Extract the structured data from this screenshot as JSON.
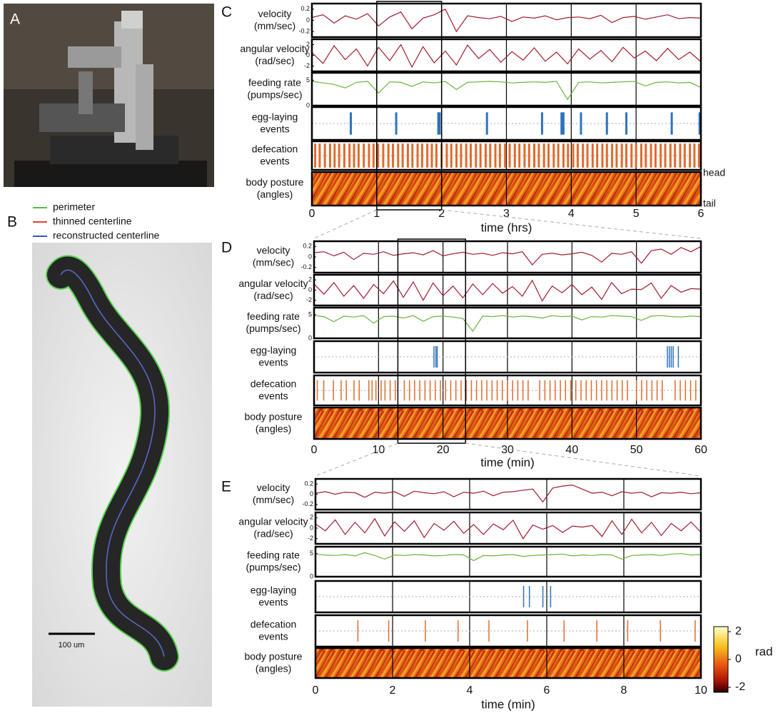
{
  "panels": {
    "A": {
      "label": "A"
    },
    "B": {
      "label": "B",
      "legend": [
        {
          "name": "perimeter",
          "color": "#58b848"
        },
        {
          "name": "thinned centerline",
          "color": "#e8402c"
        },
        {
          "name": "reconstructed centerline",
          "color": "#3a55b8"
        }
      ],
      "scale_bar": "100 um"
    },
    "C": {
      "label": "C",
      "xlabel": "time (hrs)",
      "xlim": [
        0,
        6
      ],
      "xticks": [
        0,
        1,
        2,
        3,
        4,
        5,
        6
      ],
      "zoom": [
        1,
        2
      ],
      "head": "head",
      "tail": "tail",
      "rows": [
        {
          "kind": "line",
          "label": [
            "velocity",
            "(mm/sec)"
          ],
          "color": "#a31b2c",
          "ylim": [
            -0.3,
            0.3
          ],
          "yticks": [
            0.2,
            0,
            -0.2
          ],
          "values": [
            0.05,
            0.1,
            -0.05,
            0.08,
            0.02,
            0.12,
            -0.1,
            0.06,
            0.15,
            -0.15,
            0.04,
            0.1,
            0.2,
            -0.2,
            0.08,
            0.05,
            0.03,
            0.07,
            -0.02,
            0.06,
            0.04,
            0.08,
            0.01,
            0.05,
            0.06,
            0.03,
            0.09,
            -0.04,
            0.05,
            0.07,
            0.02,
            0.06,
            0.1,
            0.03,
            0.05,
            0.04
          ]
        },
        {
          "kind": "line",
          "label": [
            "angular velocity",
            "(rad/sec)"
          ],
          "color": "#a31b2c",
          "ylim": [
            -3,
            3
          ],
          "yticks": [
            2,
            0,
            -2
          ],
          "values": [
            0.5,
            -1.5,
            1.8,
            -0.8,
            1.2,
            -2,
            1.5,
            -1,
            2,
            -2.2,
            1.6,
            -1.4,
            0.8,
            -1.8,
            1.9,
            -0.6,
            1.1,
            -1.3,
            0.7,
            -0.9,
            1.4,
            -1.1,
            0.6,
            -1.6,
            1.2,
            -0.7,
            0.9,
            -1.2,
            1.5,
            -0.5,
            0.8,
            -1,
            1.3,
            -0.8,
            0.6,
            -1.2
          ]
        },
        {
          "kind": "line",
          "label": [
            "feeding rate",
            "(pumps/sec)"
          ],
          "color": "#6ab43c",
          "ylim": [
            0,
            6.5
          ],
          "yticks": [
            5,
            0
          ],
          "values": [
            4.8,
            4.5,
            4.2,
            3.5,
            4.6,
            4.8,
            2.5,
            4.7,
            4.6,
            3.8,
            4.7,
            4.5,
            4.8,
            3.2,
            4.6,
            4.7,
            4.8,
            4.7,
            4.5,
            4.6,
            4.7,
            4.6,
            4.8,
            1.2,
            4.6,
            4.7,
            4.5,
            4.6,
            4.7,
            4.8,
            3.9,
            4.6,
            4.7,
            4.5,
            4.6,
            3.6
          ]
        },
        {
          "kind": "events",
          "label": [
            "egg-laying",
            "events"
          ],
          "color": "#2f72c0",
          "events": [
            0.6,
            1.3,
            1.95,
            1.97,
            2.7,
            3.55,
            3.85,
            3.88,
            4.15,
            4.55,
            4.85,
            5.55,
            5.98
          ]
        },
        {
          "kind": "events",
          "label": [
            "defecation",
            "events"
          ],
          "color": "#e06a2c",
          "events": [
            0.05,
            0.12,
            0.2,
            0.28,
            0.35,
            0.42,
            0.5,
            0.58,
            0.65,
            0.72,
            0.8,
            0.88,
            0.95,
            1.02,
            1.1,
            1.18,
            1.25,
            1.33,
            1.4,
            1.48,
            1.55,
            1.63,
            1.7,
            1.78,
            1.85,
            1.92,
            2.0,
            2.08,
            2.15,
            2.23,
            2.3,
            2.38,
            2.45,
            2.53,
            2.6,
            2.68,
            2.75,
            2.83,
            2.9,
            2.98,
            3.05,
            3.13,
            3.2,
            3.28,
            3.35,
            3.43,
            3.5,
            3.58,
            3.65,
            3.73,
            3.8,
            3.88,
            3.95,
            4.03,
            4.1,
            4.18,
            4.25,
            4.33,
            4.4,
            4.48,
            4.55,
            4.63,
            4.7,
            4.78,
            4.85,
            4.93,
            5.0,
            5.08,
            5.15,
            5.23,
            5.3,
            5.38,
            5.45,
            5.53,
            5.6,
            5.68,
            5.75,
            5.83,
            5.9,
            5.97
          ]
        },
        {
          "kind": "heatmap",
          "label": [
            "body posture",
            "(angles)"
          ]
        }
      ]
    },
    "D": {
      "label": "D",
      "xlabel": "time (min)",
      "xlim": [
        0,
        60
      ],
      "xticks": [
        0,
        10,
        20,
        30,
        40,
        50,
        60
      ],
      "zoom": [
        13,
        23.5
      ],
      "rows": [
        {
          "kind": "line",
          "label": [
            "velocity",
            "(mm/sec)"
          ],
          "color": "#a31b2c",
          "ylim": [
            -0.3,
            0.3
          ],
          "yticks": [
            0.2,
            0,
            -0.2
          ],
          "values": [
            0.08,
            0.1,
            0.02,
            0.09,
            -0.05,
            0.07,
            0.05,
            0.1,
            0.03,
            0.06,
            0.08,
            0.04,
            0.12,
            0.02,
            0.06,
            0.09,
            0.05,
            0.07,
            0.03,
            0.08,
            0.06,
            0.1,
            -0.15,
            0.05,
            0.07,
            0.04,
            0.06,
            0.09,
            0.03,
            -0.1,
            0.07,
            0.05,
            0.1,
            -0.12,
            0.12,
            0.15,
            0.05,
            0.18,
            0.1,
            0.2
          ]
        },
        {
          "kind": "line",
          "label": [
            "angular velocity",
            "(rad/sec)"
          ],
          "color": "#a31b2c",
          "ylim": [
            -3,
            3
          ],
          "yticks": [
            2,
            0,
            -2
          ],
          "values": [
            1.2,
            -0.8,
            1.5,
            -1.2,
            0.9,
            -1.6,
            1.1,
            -0.7,
            1.8,
            -1.4,
            1.6,
            -2,
            1.4,
            -1.1,
            0.8,
            -1.5,
            1.2,
            -0.9,
            1.3,
            -0.6,
            0.7,
            -1.2,
            1.9,
            -2.1,
            0.8,
            -0.5,
            1.1,
            -0.9,
            0.6,
            -1.8,
            1.5,
            -0.7,
            0.2,
            0.1,
            1.4,
            -1.6,
            0.9,
            -0.4,
            0.3,
            0.2
          ]
        },
        {
          "kind": "line",
          "label": [
            "feeding rate",
            "(pumps/sec)"
          ],
          "color": "#6ab43c",
          "ylim": [
            0,
            6.5
          ],
          "yticks": [
            5,
            0
          ],
          "values": [
            4.8,
            4.6,
            3.5,
            4.7,
            4.5,
            4.8,
            3.2,
            4.6,
            4.7,
            4.3,
            4.8,
            3.6,
            4.6,
            4.7,
            4.5,
            4.2,
            1.5,
            4.7,
            4.6,
            4.8,
            4.5,
            4.7,
            4.6,
            4.3,
            4.8,
            4.6,
            4.7,
            3.9,
            4.6,
            4.5,
            4.8,
            4.7,
            4.6,
            3.8,
            4.7,
            4.8,
            4.6,
            4.5,
            4.7,
            4.6
          ]
        },
        {
          "kind": "events",
          "label": [
            "egg-laying",
            "events"
          ],
          "color": "#2f72c0",
          "events": [
            18.6,
            18.9,
            19.1,
            54.8,
            55.1,
            55.4,
            55.7,
            56.5
          ]
        },
        {
          "kind": "events",
          "label": [
            "defecation",
            "events"
          ],
          "color": "#e06a2c",
          "events": [
            0.5,
            1.5,
            3.0,
            4.2,
            5.0,
            6.2,
            7.0,
            8.5,
            9.0,
            9.6,
            10.4,
            11.0,
            11.8,
            12.6,
            14.0,
            14.8,
            15.6,
            16.4,
            17.2,
            18.0,
            18.8,
            19.6,
            20.4,
            21.2,
            22.0,
            22.8,
            23.6,
            24.4,
            25.2,
            26.0,
            26.8,
            27.6,
            28.4,
            29.2,
            30.0,
            30.8,
            31.6,
            32.4,
            33.2,
            35.0,
            35.8,
            36.6,
            37.4,
            38.2,
            39.0,
            39.8,
            40.6,
            41.4,
            42.2,
            43.0,
            43.8,
            44.6,
            45.4,
            46.2,
            47.0,
            47.8,
            48.6,
            50.0,
            50.8,
            51.6,
            52.4,
            53.2,
            54.0,
            56.0,
            56.8,
            57.6,
            58.4,
            59.2
          ]
        },
        {
          "kind": "heatmap",
          "label": [
            "body posture",
            "(angles)"
          ]
        }
      ]
    },
    "E": {
      "label": "E",
      "xlabel": "time (min)",
      "xlim": [
        0,
        10
      ],
      "xticks": [
        0,
        2,
        4,
        6,
        8,
        10
      ],
      "rows": [
        {
          "kind": "line",
          "label": [
            "velocity",
            "(mm/sec)"
          ],
          "color": "#a31b2c",
          "ylim": [
            -0.3,
            0.3
          ],
          "yticks": [
            0.2,
            0,
            -0.2
          ],
          "values": [
            0.02,
            0.05,
            0.0,
            0.04,
            0.03,
            -0.06,
            0.04,
            0.02,
            0.05,
            -0.04,
            0.06,
            0.03,
            0.01,
            0.05,
            -0.05,
            0.04,
            0.02,
            0.06,
            -0.03,
            0.04,
            0.05,
            0.08,
            0.1,
            -0.15,
            0.12,
            0.16,
            0.18,
            0.1,
            0.02,
            0.04,
            -0.03,
            0.05,
            0.02,
            0.04,
            -0.05,
            0.03,
            0.02,
            0.04,
            0.01,
            0.03
          ]
        },
        {
          "kind": "line",
          "label": [
            "angular velocity",
            "(rad/sec)"
          ],
          "color": "#a31b2c",
          "ylim": [
            -3,
            3
          ],
          "yticks": [
            2,
            0,
            -2
          ],
          "values": [
            0.8,
            -0.5,
            1.6,
            -1.2,
            1.1,
            -0.9,
            1.8,
            -1.5,
            1.2,
            -0.6,
            1.4,
            -1.8,
            0.9,
            -0.4,
            1.3,
            -1.0,
            0.7,
            -1.2,
            0.8,
            -0.3,
            1.5,
            -2.0,
            0.6,
            -0.2,
            0.5,
            -0.8,
            0.4,
            0.2,
            0.5,
            -1.6,
            1.4,
            -1.2,
            1.7,
            -0.9,
            1.1,
            -1.4,
            0.9,
            -0.5,
            1.2,
            -0.8
          ]
        },
        {
          "kind": "line",
          "label": [
            "feeding rate",
            "(pumps/sec)"
          ],
          "color": "#6ab43c",
          "ylim": [
            0,
            6.5
          ],
          "yticks": [
            5,
            0
          ],
          "values": [
            4.9,
            4.7,
            4.6,
            4.8,
            4.5,
            5.2,
            4.6,
            3.8,
            4.7,
            4.6,
            4.8,
            4.7,
            4.5,
            4.6,
            4.8,
            4.7,
            3.5,
            4.6,
            4.5,
            4.7,
            4.8,
            4.4,
            4.6,
            4.7,
            4.8,
            4.9,
            4.5,
            4.7,
            4.6,
            4.8,
            4.7,
            3.8,
            4.6,
            4.7,
            4.8,
            4.6,
            4.9,
            5.0,
            4.7,
            4.8
          ]
        },
        {
          "kind": "events",
          "label": [
            "egg-laying",
            "events"
          ],
          "color": "#2f72c0",
          "events": [
            5.4,
            5.55,
            5.9,
            6.1
          ]
        },
        {
          "kind": "events",
          "label": [
            "defecation",
            "events"
          ],
          "color": "#e06a2c",
          "events": [
            1.1,
            1.9,
            2.85,
            3.7,
            4.5,
            5.5,
            6.45,
            7.3,
            8.1,
            8.95,
            9.85
          ]
        },
        {
          "kind": "heatmap",
          "label": [
            "body posture",
            "(angles)"
          ]
        }
      ]
    }
  },
  "colorbar": {
    "ticks": [
      2,
      0,
      -2
    ],
    "unit": "rad"
  }
}
